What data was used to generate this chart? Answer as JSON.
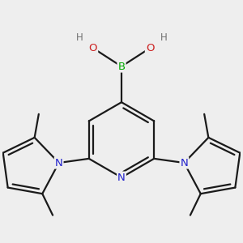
{
  "bg_color": "#eeeeee",
  "atom_colors": {
    "C": "#1a1a1a",
    "N": "#2020cc",
    "B": "#00aa00",
    "O": "#cc2020",
    "H": "#707070"
  },
  "bond_color": "#1a1a1a",
  "bond_width": 1.6,
  "font_size_atom": 9.5,
  "font_size_methyl": 8.5,
  "font_size_H": 8.5,
  "pyridine_r": 0.82,
  "pyrrole_r": 0.65
}
